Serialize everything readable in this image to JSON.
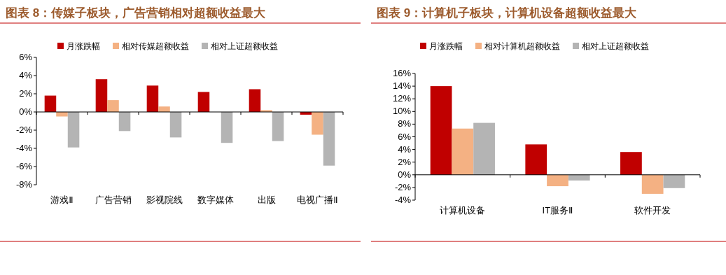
{
  "chart_data": [
    {
      "type": "bar",
      "title": "图表 8：传媒子板块，广告营销相对超额收益最大",
      "categories": [
        "游戏Ⅱ",
        "广告营销",
        "影视院线",
        "数字媒体",
        "出版",
        "电视广播Ⅱ"
      ],
      "series": [
        {
          "name": "月涨跌幅",
          "color": "#c00000",
          "values": [
            1.8,
            3.6,
            2.9,
            2.2,
            2.5,
            -0.3
          ]
        },
        {
          "name": "相对传媒超额收益",
          "color": "#f4b183",
          "values": [
            -0.5,
            1.3,
            0.6,
            0.0,
            0.2,
            -2.5
          ]
        },
        {
          "name": "相对上证超额收益",
          "color": "#b4b4b4",
          "values": [
            -3.9,
            -2.1,
            -2.8,
            -3.4,
            -3.2,
            -5.9
          ]
        }
      ],
      "ylim": [
        -8,
        6
      ],
      "yticks": [
        {
          "value": -8,
          "label": "-8%"
        },
        {
          "value": -6,
          "label": "-6%"
        },
        {
          "value": -4,
          "label": "-4%"
        },
        {
          "value": -2,
          "label": "-2%"
        },
        {
          "value": 0,
          "label": "0%"
        },
        {
          "value": 2,
          "label": "2%"
        },
        {
          "value": 4,
          "label": "4%"
        },
        {
          "value": 6,
          "label": "6%"
        }
      ],
      "legend": "top"
    },
    {
      "type": "bar",
      "title": "图表 9：计算机子板块，计算机设备超额收益最大",
      "categories": [
        "计算机设备",
        "IT服务Ⅱ",
        "软件开发"
      ],
      "series": [
        {
          "name": "月涨跌幅",
          "color": "#c00000",
          "values": [
            14.0,
            4.8,
            3.6
          ]
        },
        {
          "name": "相对计算机超额收益",
          "color": "#f4b183",
          "values": [
            7.3,
            -1.8,
            -3.0
          ]
        },
        {
          "name": "相对上证超额收益",
          "color": "#b4b4b4",
          "values": [
            8.2,
            -0.9,
            -2.1
          ]
        }
      ],
      "ylim": [
        -4,
        16
      ],
      "yticks": [
        {
          "value": -4,
          "label": "-4%"
        },
        {
          "value": -2,
          "label": "-2%"
        },
        {
          "value": 0,
          "label": "0%"
        },
        {
          "value": 2,
          "label": "2%"
        },
        {
          "value": 4,
          "label": "4%"
        },
        {
          "value": 6,
          "label": "6%"
        },
        {
          "value": 8,
          "label": "8%"
        },
        {
          "value": 10,
          "label": "10%"
        },
        {
          "value": 12,
          "label": "12%"
        },
        {
          "value": 14,
          "label": "14%"
        },
        {
          "value": 16,
          "label": "16%"
        }
      ],
      "legend": "top"
    }
  ]
}
